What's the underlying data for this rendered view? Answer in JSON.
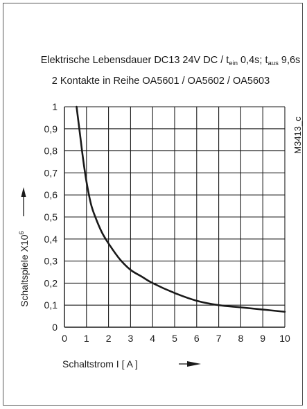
{
  "chart_data": {
    "type": "line",
    "title_line1_main": "Elektrische Lebensdauer DC13 24V DC / t",
    "title_line1_sub_ein": "ein",
    "title_line1_mid": " 0,4s;  t",
    "title_line1_sub_aus": "aus",
    "title_line1_end": " 9,6s",
    "title_line2": "2 Kontakte in Reihe OA5601 / OA5602 / OA5603",
    "code": "M3413_c",
    "xlabel": "Schaltstrom I   [ A ]",
    "ylabel_main": "Schaltspiele  X10",
    "ylabel_exp": "6",
    "xlim": [
      0,
      10
    ],
    "ylim": [
      0,
      1
    ],
    "x_ticks": [
      "0",
      "1",
      "2",
      "3",
      "4",
      "5",
      "6",
      "7",
      "8",
      "9",
      "10"
    ],
    "y_ticks": [
      "0",
      "0,1",
      "0,2",
      "0,3",
      "0,4",
      "0,5",
      "0,6",
      "0,7",
      "0,8",
      "0,9",
      "1"
    ],
    "grid": true,
    "series": [
      {
        "x": [
          0.55,
          0.7,
          0.85,
          1.0,
          1.2,
          1.4,
          1.7,
          2.0,
          2.5,
          3.0,
          3.5,
          4.0,
          5.0,
          6.0,
          7.0,
          8.0,
          9.0,
          10.0
        ],
        "y": [
          1.0,
          0.88,
          0.76,
          0.66,
          0.56,
          0.5,
          0.43,
          0.38,
          0.31,
          0.26,
          0.23,
          0.2,
          0.155,
          0.12,
          0.1,
          0.09,
          0.08,
          0.07
        ]
      }
    ]
  }
}
